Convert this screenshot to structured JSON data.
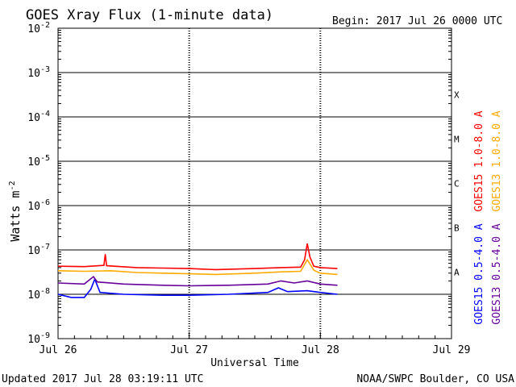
{
  "chart_data": {
    "type": "line",
    "title": "GOES Xray Flux (1-minute data)",
    "begin_label": "Begin:  2017 Jul 26 0000 UTC",
    "ylabel_base": "Watts m",
    "ylabel_exp": "-2",
    "xlabel": "Universal Time",
    "y_scale": "log",
    "ylim": [
      1e-09,
      0.01
    ],
    "y_ticks": [
      {
        "value": 1e-09,
        "base": "10",
        "exp": "-9"
      },
      {
        "value": 1e-08,
        "base": "10",
        "exp": "-8"
      },
      {
        "value": 1e-07,
        "base": "10",
        "exp": "-7"
      },
      {
        "value": 1e-06,
        "base": "10",
        "exp": "-6"
      },
      {
        "value": 1e-05,
        "base": "10",
        "exp": "-5"
      },
      {
        "value": 0.0001,
        "base": "10",
        "exp": "-4"
      },
      {
        "value": 0.001,
        "base": "10",
        "exp": "-3"
      },
      {
        "value": 0.01,
        "base": "10",
        "exp": "-2"
      }
    ],
    "x_range_days": [
      0,
      3
    ],
    "x_ticks": [
      {
        "day": 0,
        "label": "Jul 26"
      },
      {
        "day": 1,
        "label": "Jul 27"
      },
      {
        "day": 2,
        "label": "Jul 28"
      },
      {
        "day": 3,
        "label": "Jul 29"
      }
    ],
    "flare_classes": [
      {
        "label": "X",
        "low": 0.0001
      },
      {
        "label": "M",
        "low": 1e-05
      },
      {
        "label": "C",
        "low": 1e-06
      },
      {
        "label": "B",
        "low": 1e-07
      },
      {
        "label": "A",
        "low": 1e-08
      }
    ],
    "grid": "horizontal lines at each decade",
    "legend_position": "right, rotated vertical",
    "series": [
      {
        "name": "GOES15 1.0-8.0 A",
        "color": "#ff0000",
        "points": [
          [
            0,
            4.3e-08
          ],
          [
            0.2,
            4.2e-08
          ],
          [
            0.35,
            4.5e-08
          ],
          [
            0.36,
            8e-08
          ],
          [
            0.37,
            4.4e-08
          ],
          [
            0.6,
            4e-08
          ],
          [
            0.8,
            3.9e-08
          ],
          [
            1.0,
            3.8e-08
          ],
          [
            1.2,
            3.6e-08
          ],
          [
            1.5,
            3.8e-08
          ],
          [
            1.7,
            4e-08
          ],
          [
            1.85,
            4.1e-08
          ],
          [
            1.88,
            6e-08
          ],
          [
            1.9,
            1.4e-07
          ],
          [
            1.92,
            7e-08
          ],
          [
            1.95,
            4.3e-08
          ],
          [
            2.0,
            4e-08
          ],
          [
            2.13,
            3.8e-08
          ]
        ]
      },
      {
        "name": "GOES13 1.0-8.0 A",
        "color": "#ffaa00",
        "points": [
          [
            0,
            3.4e-08
          ],
          [
            0.2,
            3.3e-08
          ],
          [
            0.4,
            3.4e-08
          ],
          [
            0.6,
            3.1e-08
          ],
          [
            0.8,
            3e-08
          ],
          [
            1.0,
            2.9e-08
          ],
          [
            1.2,
            2.8e-08
          ],
          [
            1.5,
            3e-08
          ],
          [
            1.7,
            3.2e-08
          ],
          [
            1.85,
            3.3e-08
          ],
          [
            1.9,
            6e-08
          ],
          [
            1.95,
            3.5e-08
          ],
          [
            2.0,
            3e-08
          ],
          [
            2.13,
            2.8e-08
          ]
        ]
      },
      {
        "name": "GOES15 0.5-4.0 A",
        "color": "#0000ff",
        "points": [
          [
            0,
            1e-08
          ],
          [
            0.1,
            8.5e-09
          ],
          [
            0.2,
            8.5e-09
          ],
          [
            0.25,
            1.3e-08
          ],
          [
            0.28,
            2.2e-08
          ],
          [
            0.32,
            1.1e-08
          ],
          [
            0.5,
            1e-08
          ],
          [
            0.8,
            9.5e-09
          ],
          [
            1.0,
            9.5e-09
          ],
          [
            1.3,
            1e-08
          ],
          [
            1.6,
            1.1e-08
          ],
          [
            1.68,
            1.4e-08
          ],
          [
            1.75,
            1.15e-08
          ],
          [
            1.9,
            1.2e-08
          ],
          [
            2.0,
            1.1e-08
          ],
          [
            2.13,
            1e-08
          ]
        ]
      },
      {
        "name": "GOES13 0.5-4.0 A",
        "color": "#660099",
        "points": [
          [
            0,
            1.8e-08
          ],
          [
            0.2,
            1.7e-08
          ],
          [
            0.27,
            2.5e-08
          ],
          [
            0.3,
            1.9e-08
          ],
          [
            0.5,
            1.7e-08
          ],
          [
            0.8,
            1.6e-08
          ],
          [
            1.0,
            1.55e-08
          ],
          [
            1.3,
            1.6e-08
          ],
          [
            1.6,
            1.7e-08
          ],
          [
            1.7,
            2e-08
          ],
          [
            1.8,
            1.8e-08
          ],
          [
            1.9,
            2e-08
          ],
          [
            2.0,
            1.7e-08
          ],
          [
            2.13,
            1.6e-08
          ]
        ]
      }
    ]
  },
  "footer": {
    "updated": "Updated 2017 Jul 28 03:19:11 UTC",
    "credit": "NOAA/SWPC Boulder, CO USA"
  }
}
